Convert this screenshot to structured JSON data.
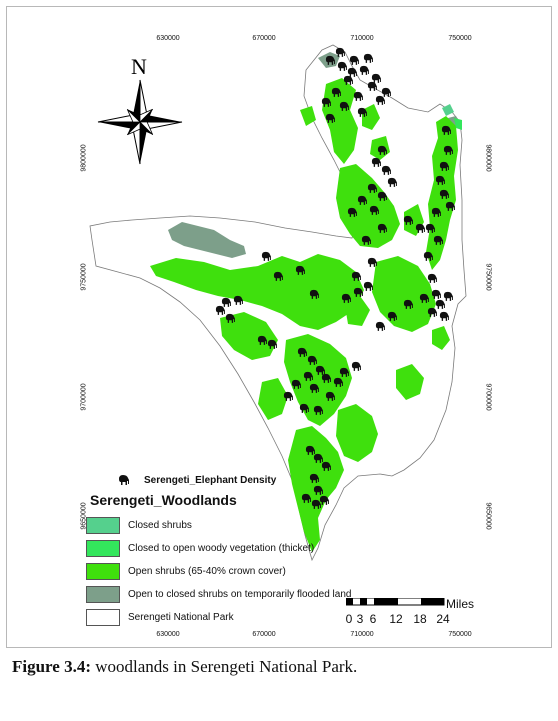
{
  "map": {
    "north_label": "N",
    "grid_x_labels": [
      "630000",
      "670000",
      "710000",
      "750000"
    ],
    "grid_y_labels": [
      "9800000",
      "9750000",
      "9700000",
      "9650000"
    ],
    "elephant_layer_label": "Serengeti_Elephant Density",
    "elephant_icon": "elephant-icon",
    "colors": {
      "open_shrubs": "#3fe00d",
      "flooded_shrubs": "#7d9f8a",
      "closed_shrubs": "#55d08d",
      "thicket": "#33e65c",
      "park_fill": "#ffffff",
      "park_outline": "#7a7a7a",
      "elephant": "#111111"
    }
  },
  "legend": {
    "title": "Serengeti_Woodlands",
    "items": [
      {
        "label": "Closed shrubs",
        "color": "#55d08d"
      },
      {
        "label": "Closed to open woody vegetation (thicket)",
        "color": "#33e65c"
      },
      {
        "label": "Open shrubs (65-40% crown cover)",
        "color": "#3fe00d"
      },
      {
        "label": "Open to closed shrubs on temporarily flooded land",
        "color": "#7d9f8a"
      },
      {
        "label": "Serengeti National Park",
        "color": "#ffffff"
      }
    ]
  },
  "scale_bar": {
    "unit": "Miles",
    "labels": [
      "0",
      "3",
      "6",
      "12",
      "18",
      "24"
    ]
  },
  "caption": {
    "label": "Figure 3.4:",
    "text": " woodlands in Serengeti National Park."
  }
}
